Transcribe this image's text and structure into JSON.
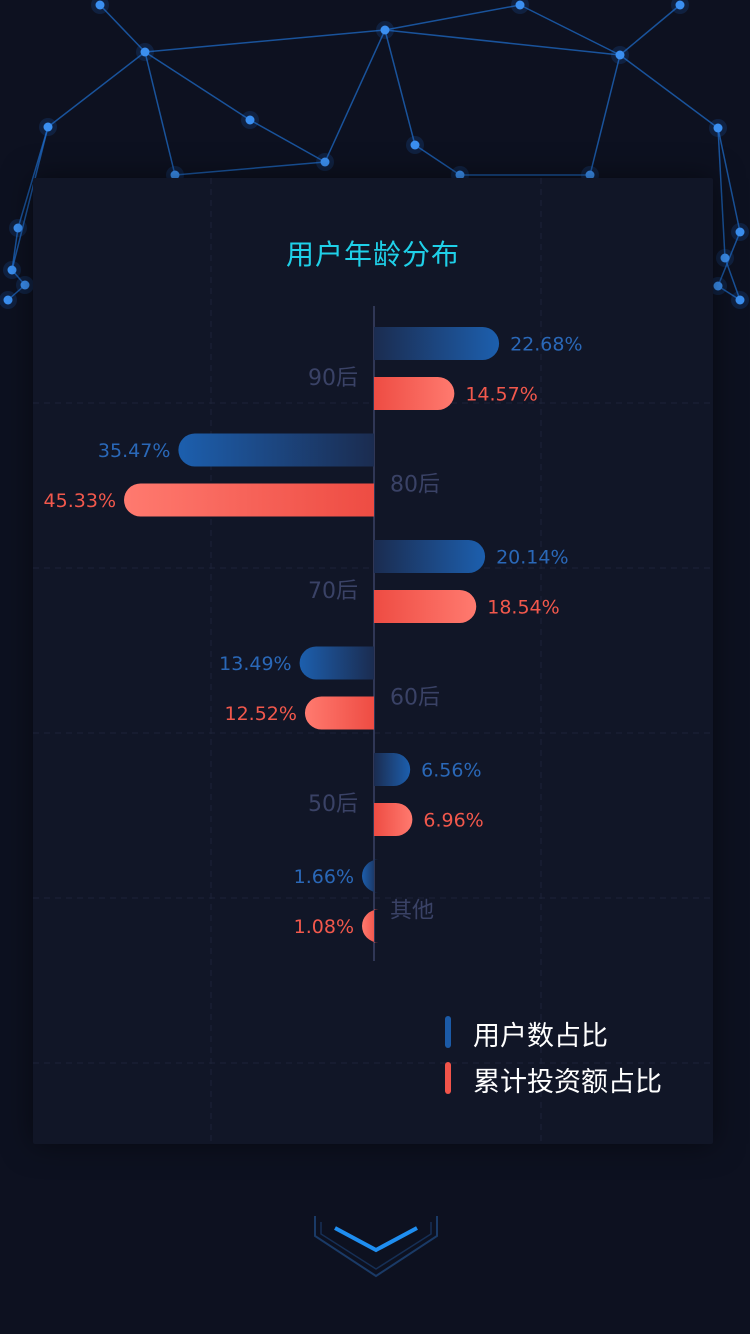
{
  "colors": {
    "background": "#0d1120",
    "panel": "#111627",
    "title": "#1fd0e8",
    "user_series": "#1b5aa7",
    "investment_series": "#f2544a",
    "category_label": "#3a4266",
    "user_label": "#2a68b8",
    "investment_label": "#f2584c"
  },
  "chart_data": {
    "type": "bar",
    "orientation": "horizontal-diverging",
    "title": "用户年龄分布",
    "categories": [
      "90后",
      "80后",
      "70后",
      "60后",
      "50后",
      "其他"
    ],
    "series": [
      {
        "name": "用户数占比",
        "values": [
          22.68,
          35.47,
          20.14,
          13.49,
          6.56,
          1.66
        ],
        "labels": [
          "22.68%",
          "35.47%",
          "20.14%",
          "13.49%",
          "6.56%",
          "1.66%"
        ]
      },
      {
        "name": "累计投资额占比",
        "values": [
          14.57,
          45.33,
          18.54,
          12.52,
          6.96,
          1.08
        ],
        "labels": [
          "14.57%",
          "45.33%",
          "18.54%",
          "12.52%",
          "6.96%",
          "1.08%"
        ]
      }
    ],
    "side": [
      "right",
      "left",
      "right",
      "left",
      "right",
      "left"
    ],
    "unit": "%",
    "grid": true,
    "legend_position": "bottom-right"
  },
  "legend": [
    {
      "label": "用户数占比",
      "color": "#1b5aa7"
    },
    {
      "label": "累计投资额占比",
      "color": "#f2544a"
    }
  ],
  "icons": {
    "scroll": "chevron-down-icon"
  }
}
